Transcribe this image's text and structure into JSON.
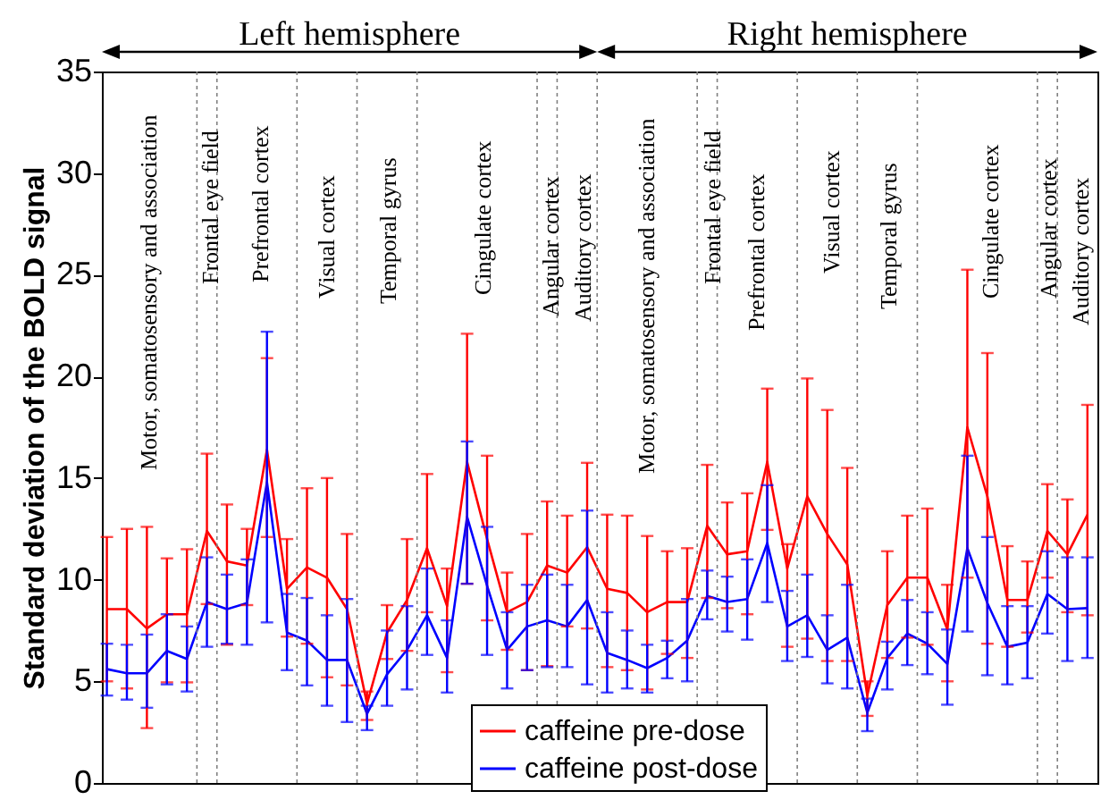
{
  "chart_data": {
    "type": "line",
    "ylabel": "Standard deviation of the BOLD signal",
    "categories": [
      null,
      null,
      null,
      null,
      null,
      null,
      null,
      null,
      null,
      null,
      null,
      null,
      null,
      null,
      null,
      null,
      null,
      null,
      null,
      null,
      null,
      null,
      null,
      null,
      null,
      null,
      null,
      null,
      null,
      null,
      null,
      null,
      null,
      null,
      null,
      null,
      null,
      null,
      null,
      null,
      null,
      null,
      null,
      null,
      null,
      null,
      null,
      null,
      null,
      null
    ],
    "ylim": [
      0,
      35
    ],
    "yticks": [
      0,
      5,
      10,
      15,
      20,
      25,
      30,
      35
    ],
    "grid": false,
    "legend": "bottom",
    "marker": "none",
    "line_style": "solid",
    "series": [
      {
        "name": "caffeine pre-dose",
        "color": "#ff0000",
        "values": [
          8.55,
          8.55,
          7.6,
          8.3,
          8.3,
          12.4,
          10.9,
          10.7,
          16.4,
          9.55,
          10.6,
          10.1,
          8.55,
          3.9,
          7.4,
          9.0,
          11.55,
          8.7,
          15.8,
          12.0,
          8.4,
          8.9,
          10.7,
          10.35,
          11.6,
          9.55,
          9.35,
          8.4,
          8.9,
          8.9,
          12.65,
          11.25,
          11.4,
          15.8,
          10.55,
          14.1,
          12.25,
          10.75,
          4.3,
          8.75,
          10.1,
          10.1,
          7.55,
          17.5,
          14.1,
          9.0,
          9.0,
          12.4,
          11.25,
          13.2
        ],
        "errors": [
          [
            5.0,
            12.1
          ],
          [
            4.65,
            12.5
          ],
          [
            2.7,
            12.6
          ],
          [
            4.95,
            11.05
          ],
          [
            4.95,
            11.5
          ],
          [
            8.8,
            16.2
          ],
          [
            6.8,
            13.7
          ],
          [
            8.75,
            12.5
          ],
          [
            12.1,
            20.9
          ],
          [
            7.2,
            12.0
          ],
          [
            6.85,
            14.5
          ],
          [
            5.2,
            15.0
          ],
          [
            4.8,
            12.25
          ],
          [
            3.1,
            4.5
          ],
          [
            6.1,
            8.75
          ],
          [
            6.5,
            12.0
          ],
          [
            8.4,
            15.2
          ],
          [
            5.45,
            10.55
          ],
          [
            9.8,
            22.1
          ],
          [
            8.0,
            16.1
          ],
          [
            6.55,
            10.35
          ],
          [
            5.55,
            12.25
          ],
          [
            5.75,
            13.85
          ],
          [
            7.7,
            13.15
          ],
          [
            7.6,
            15.75
          ],
          [
            5.7,
            13.2
          ],
          [
            5.55,
            13.15
          ],
          [
            4.6,
            12.15
          ],
          [
            6.35,
            11.4
          ],
          [
            6.15,
            11.55
          ],
          [
            9.1,
            15.65
          ],
          [
            8.6,
            13.8
          ],
          [
            8.3,
            14.25
          ],
          [
            12.45,
            19.4
          ],
          [
            6.7,
            11.75
          ],
          [
            7.1,
            19.9
          ],
          [
            6.0,
            18.35
          ],
          [
            6.0,
            15.5
          ],
          [
            3.3,
            5.0
          ],
          [
            6.15,
            11.4
          ],
          [
            7.15,
            13.15
          ],
          [
            6.8,
            13.5
          ],
          [
            5.0,
            9.75
          ],
          [
            10.1,
            25.25
          ],
          [
            6.85,
            21.15
          ],
          [
            6.7,
            11.65
          ],
          [
            7.4,
            10.9
          ],
          [
            10.1,
            14.7
          ],
          [
            8.4,
            13.95
          ],
          [
            8.25,
            18.6
          ]
        ]
      },
      {
        "name": "caffeine post-dose",
        "color": "#0000ff",
        "values": [
          5.6,
          5.4,
          5.4,
          6.5,
          6.1,
          8.9,
          8.55,
          8.85,
          14.8,
          7.4,
          7.0,
          6.05,
          6.05,
          3.4,
          5.35,
          6.55,
          8.25,
          6.15,
          13.1,
          9.7,
          6.55,
          7.7,
          8.0,
          7.7,
          9.0,
          6.4,
          6.05,
          5.65,
          6.15,
          7.0,
          9.2,
          8.9,
          9.05,
          11.8,
          7.7,
          8.25,
          6.55,
          7.15,
          3.45,
          6.15,
          7.35,
          6.85,
          5.85,
          11.55,
          8.85,
          6.7,
          6.9,
          9.3,
          8.55,
          8.6
        ],
        "errors": [
          [
            4.3,
            6.85
          ],
          [
            4.1,
            6.8
          ],
          [
            3.7,
            7.3
          ],
          [
            4.85,
            8.3
          ],
          [
            4.5,
            7.7
          ],
          [
            6.7,
            11.1
          ],
          [
            6.85,
            10.25
          ],
          [
            6.8,
            11.0
          ],
          [
            7.9,
            22.2
          ],
          [
            5.55,
            9.3
          ],
          [
            4.8,
            9.1
          ],
          [
            3.8,
            8.25
          ],
          [
            3.0,
            9.05
          ],
          [
            2.6,
            3.8
          ],
          [
            3.8,
            7.5
          ],
          [
            4.6,
            8.7
          ],
          [
            6.3,
            10.55
          ],
          [
            4.45,
            8.0
          ],
          [
            9.8,
            16.8
          ],
          [
            6.3,
            12.6
          ],
          [
            4.65,
            8.4
          ],
          [
            5.55,
            9.75
          ],
          [
            5.7,
            10.25
          ],
          [
            5.7,
            9.75
          ],
          [
            4.85,
            13.4
          ],
          [
            4.45,
            8.4
          ],
          [
            4.65,
            7.5
          ],
          [
            4.45,
            6.8
          ],
          [
            5.15,
            7.0
          ],
          [
            5.0,
            9.05
          ],
          [
            8.05,
            10.45
          ],
          [
            7.45,
            10.15
          ],
          [
            7.05,
            11.0
          ],
          [
            8.9,
            14.65
          ],
          [
            6.0,
            9.45
          ],
          [
            6.2,
            10.25
          ],
          [
            4.9,
            8.25
          ],
          [
            4.65,
            9.75
          ],
          [
            2.55,
            4.15
          ],
          [
            4.6,
            6.95
          ],
          [
            5.8,
            9.0
          ],
          [
            5.35,
            8.4
          ],
          [
            3.85,
            7.55
          ],
          [
            7.45,
            16.1
          ],
          [
            5.3,
            12.1
          ],
          [
            4.85,
            8.7
          ],
          [
            5.15,
            8.7
          ],
          [
            7.35,
            11.4
          ],
          [
            6.0,
            11.1
          ],
          [
            6.15,
            11.1
          ]
        ]
      }
    ],
    "annotations": [
      "Left hemisphere",
      "Right hemisphere",
      "Motor, somatosensory and association",
      "Frontal eye field",
      "Prefrontal cortex",
      "Visual  cortex",
      "Temporal gyrus",
      "Cingulate cortex",
      "Angular cortex",
      "Auditory cortex",
      "Motor, somatosensory and association",
      "Frontal eye field",
      "Prefrontal cortex",
      "Visual cortex",
      "Temporal gyrus",
      "Cingulate cortex",
      "Angular cortex",
      "Auditory cortex"
    ]
  }
}
